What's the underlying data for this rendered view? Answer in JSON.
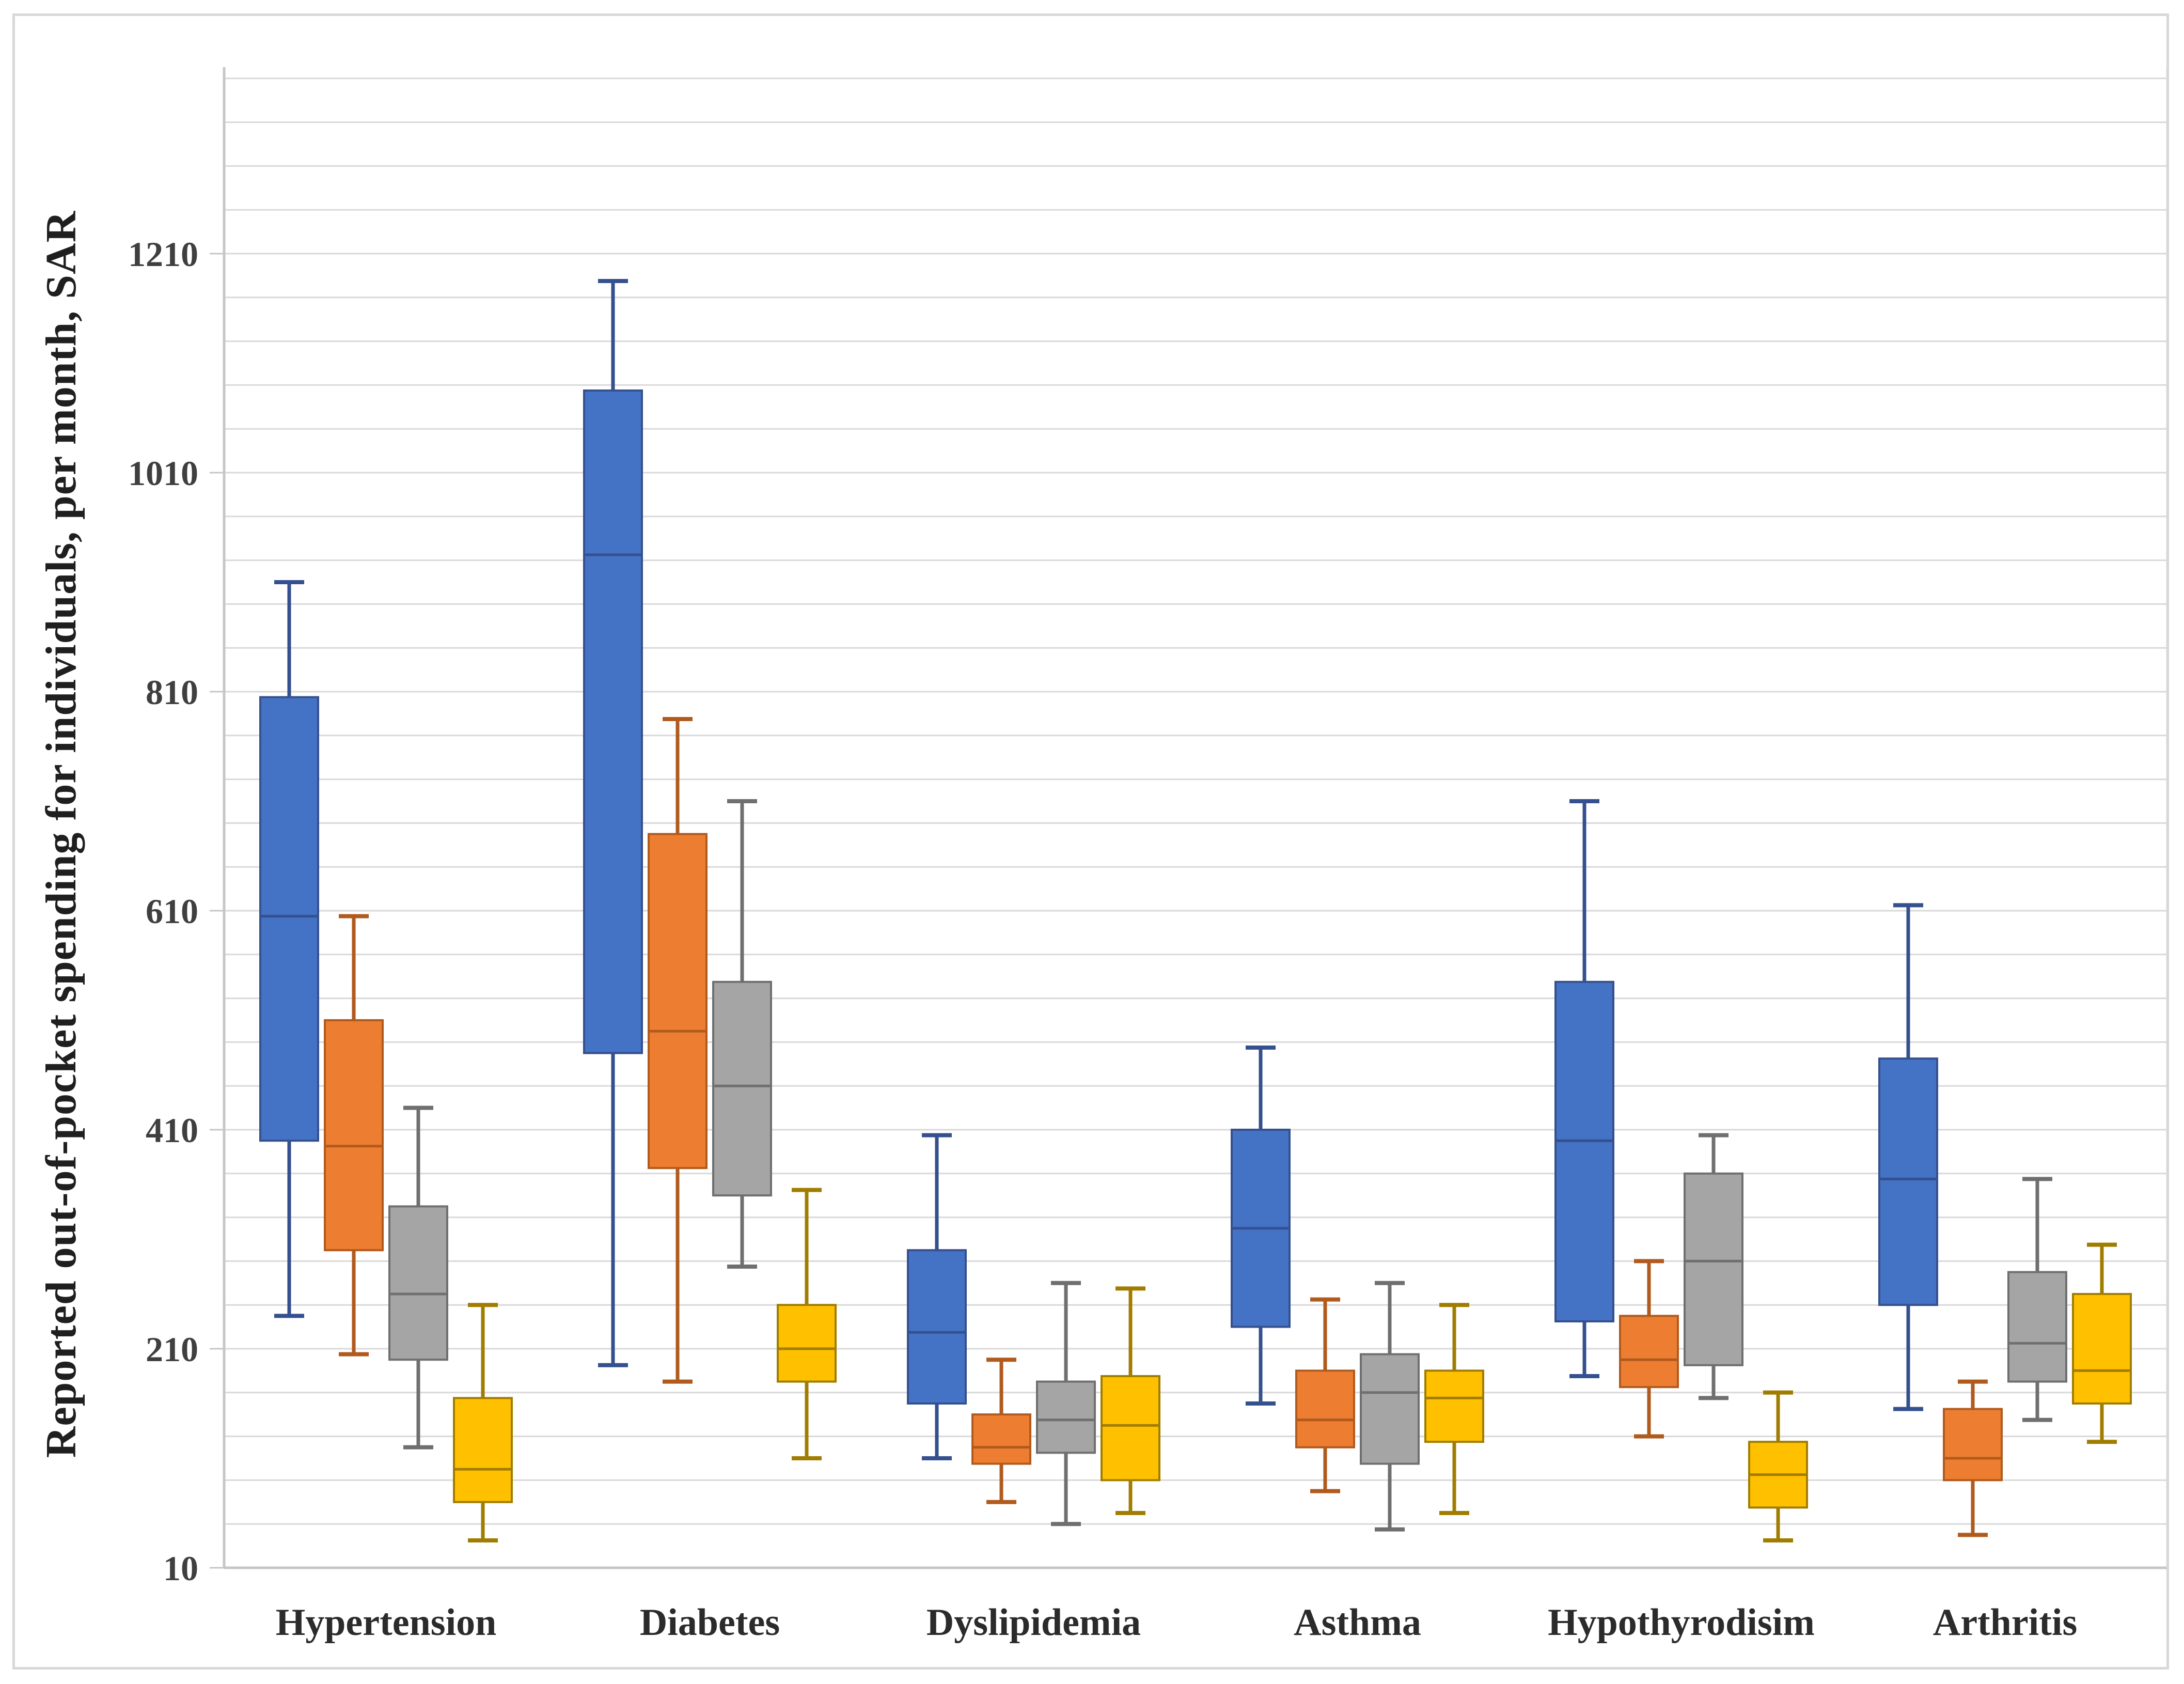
{
  "figure": {
    "background": "#ffffff",
    "border_color": "#d8d8d8"
  },
  "chart_data": {
    "type": "boxplot",
    "title": "",
    "ylabel": "Reported out-of-pocket  spending for individuals, per month, SAR",
    "xlabel": "",
    "grid": "horizontal",
    "legend": "none",
    "yaxis": {
      "min": 10,
      "max": 1380,
      "tick_labels": [
        10,
        210,
        410,
        610,
        810,
        1010,
        1210
      ],
      "minor_gridline_step": 40,
      "gridline_color": "#d9d9d9",
      "axis_line_color": "#c6c6c6",
      "tick_label_color": "#3f3f3f"
    },
    "categories": [
      "Hypertension",
      "Diabetes",
      "Dyslipidemia",
      "Asthma",
      "Hypothyrodisim",
      "Arthritis"
    ],
    "series": [
      {
        "name": "series-blue",
        "fill": "#4472c4",
        "stroke": "#35508e",
        "boxes": [
          {
            "min": 240,
            "q1": 400,
            "median": 605,
            "q3": 805,
            "max": 910
          },
          {
            "min": 195,
            "q1": 480,
            "median": 935,
            "q3": 1085,
            "max": 1185
          },
          {
            "min": 110,
            "q1": 160,
            "median": 225,
            "q3": 300,
            "max": 405
          },
          {
            "min": 160,
            "q1": 230,
            "median": 320,
            "q3": 410,
            "max": 485
          },
          {
            "min": 185,
            "q1": 235,
            "median": 400,
            "q3": 545,
            "max": 710
          },
          {
            "min": 155,
            "q1": 250,
            "median": 365,
            "q3": 475,
            "max": 615
          }
        ]
      },
      {
        "name": "series-orange",
        "fill": "#ed7d31",
        "stroke": "#b05a1e",
        "boxes": [
          {
            "min": 205,
            "q1": 300,
            "median": 395,
            "q3": 510,
            "max": 605
          },
          {
            "min": 180,
            "q1": 375,
            "median": 500,
            "q3": 680,
            "max": 785
          },
          {
            "min": 70,
            "q1": 105,
            "median": 120,
            "q3": 150,
            "max": 200
          },
          {
            "min": 80,
            "q1": 120,
            "median": 145,
            "q3": 190,
            "max": 255
          },
          {
            "min": 130,
            "q1": 175,
            "median": 200,
            "q3": 240,
            "max": 290
          },
          {
            "min": 40,
            "q1": 90,
            "median": 110,
            "q3": 155,
            "max": 180
          }
        ]
      },
      {
        "name": "series-gray",
        "fill": "#a5a5a5",
        "stroke": "#6f6f6f",
        "boxes": [
          {
            "min": 120,
            "q1": 200,
            "median": 260,
            "q3": 340,
            "max": 430
          },
          {
            "min": 285,
            "q1": 350,
            "median": 450,
            "q3": 545,
            "max": 710
          },
          {
            "min": 50,
            "q1": 115,
            "median": 145,
            "q3": 180,
            "max": 270
          },
          {
            "min": 45,
            "q1": 105,
            "median": 170,
            "q3": 205,
            "max": 270
          },
          {
            "min": 165,
            "q1": 195,
            "median": 290,
            "q3": 370,
            "max": 405
          },
          {
            "min": 145,
            "q1": 180,
            "median": 215,
            "q3": 280,
            "max": 365
          }
        ]
      },
      {
        "name": "series-yellow",
        "fill": "#ffc000",
        "stroke": "#a07d00",
        "boxes": [
          {
            "min": 35,
            "q1": 70,
            "median": 100,
            "q3": 165,
            "max": 250
          },
          {
            "min": 110,
            "q1": 180,
            "median": 210,
            "q3": 250,
            "max": 355
          },
          {
            "min": 60,
            "q1": 90,
            "median": 140,
            "q3": 185,
            "max": 265
          },
          {
            "min": 60,
            "q1": 125,
            "median": 165,
            "q3": 190,
            "max": 250
          },
          {
            "min": 35,
            "q1": 65,
            "median": 95,
            "q3": 125,
            "max": 170
          },
          {
            "min": 125,
            "q1": 160,
            "median": 190,
            "q3": 260,
            "max": 305
          }
        ]
      }
    ],
    "category_label_color": "#2b2b2b"
  }
}
